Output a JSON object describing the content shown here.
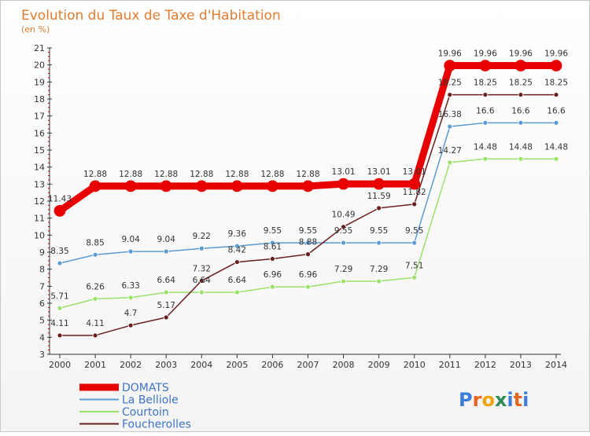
{
  "colors": {
    "DOMATS": "#e80000",
    "La Belliole": "#5b9bd5",
    "Courtoin": "#99e26b",
    "Foucherolles": "#6b1e1e",
    "axis": "#333333",
    "grid": "#cccccc",
    "title": "#e07b2f",
    "legend_text": "#3f74c8"
  },
  "logo": {
    "text": "Proxiti",
    "parts": [
      "P",
      "r",
      "o",
      "x",
      "i",
      "t",
      "i"
    ]
  },
  "chart_data": {
    "type": "line",
    "title": "Evolution du Taux de Taxe d'Habitation",
    "subtitle": "(en %)",
    "xlabel": "",
    "ylabel": "",
    "x": [
      "2000",
      "2001",
      "2002",
      "2003",
      "2004",
      "2005",
      "2006",
      "2007",
      "2008",
      "2009",
      "2010",
      "2011",
      "2012",
      "2013",
      "2014"
    ],
    "ylim": [
      3,
      21
    ],
    "yticks": [
      "3",
      "4",
      "5",
      "6",
      "7",
      "8",
      "9",
      "10",
      "11",
      "12",
      "13",
      "14",
      "15",
      "16",
      "17",
      "18",
      "19",
      "20",
      "21"
    ],
    "grid": false,
    "legend": "bottom-left",
    "series": [
      {
        "name": "DOMATS",
        "values": [
          11.43,
          12.88,
          12.88,
          12.88,
          12.88,
          12.88,
          12.88,
          12.88,
          13.01,
          13.01,
          13.01,
          19.96,
          19.96,
          19.96,
          19.96
        ],
        "labels": [
          "11.43",
          "12.88",
          "12.88",
          "12.88",
          "12.88",
          "12.88",
          "12.88",
          "12.88",
          "13.01",
          "13.01",
          "13.01",
          "19.96",
          "19.96",
          "19.96",
          "19.96"
        ]
      },
      {
        "name": "La Belliole",
        "values": [
          8.35,
          8.85,
          9.04,
          9.04,
          9.22,
          9.36,
          9.55,
          9.55,
          9.55,
          9.55,
          9.55,
          16.38,
          16.6,
          16.6,
          16.6
        ],
        "labels": [
          "8.35",
          "8.85",
          "9.04",
          "9.04",
          "9.22",
          "9.36",
          "9.55",
          "9.55",
          "9.55",
          "9.55",
          "9.55",
          "16.38",
          "16.6",
          "16.6",
          "16.6"
        ]
      },
      {
        "name": "Courtoin",
        "values": [
          5.71,
          6.26,
          6.33,
          6.64,
          6.64,
          6.64,
          6.96,
          6.96,
          7.29,
          7.29,
          7.51,
          14.27,
          14.48,
          14.48,
          14.48
        ],
        "labels": [
          "5.71",
          "6.26",
          "6.33",
          "6.64",
          "6.64",
          "6.64",
          "6.96",
          "6.96",
          "7.29",
          "7.29",
          "7.51",
          "14.27",
          "14.48",
          "14.48",
          "14.48"
        ]
      },
      {
        "name": "Foucherolles",
        "values": [
          4.11,
          4.11,
          4.7,
          5.17,
          7.32,
          8.42,
          8.61,
          8.88,
          10.49,
          11.59,
          11.82,
          18.25,
          18.25,
          18.25,
          18.25
        ],
        "labels": [
          "4.11",
          "4.11",
          "4.7",
          "5.17",
          "7.32",
          "8.42",
          "8.61",
          "8.88",
          "10.49",
          "11.59",
          "11.82",
          "18.25",
          "18.25",
          "18.25",
          "18.25"
        ]
      }
    ]
  }
}
